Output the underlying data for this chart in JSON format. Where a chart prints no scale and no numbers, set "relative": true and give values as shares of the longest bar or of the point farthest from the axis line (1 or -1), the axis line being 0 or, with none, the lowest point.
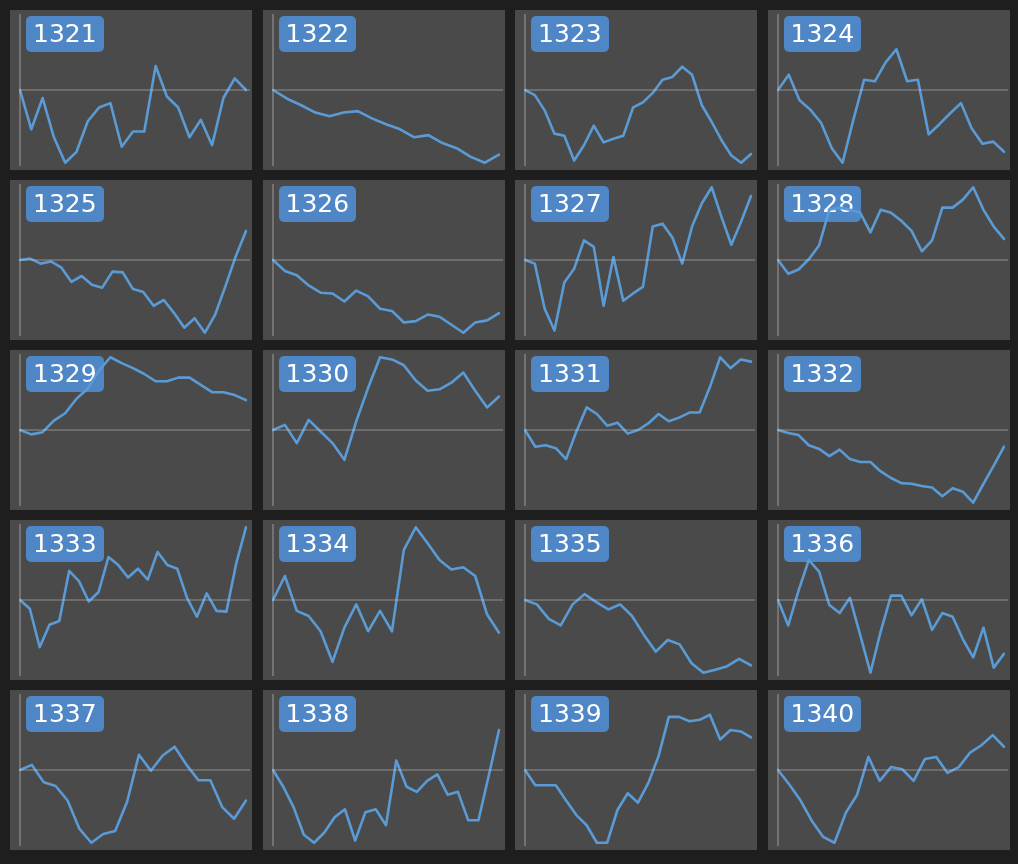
{
  "chart_data": [
    {
      "type": "line",
      "title": "1321",
      "relative": true,
      "color": "#5b9bd5",
      "categories": [
        null,
        null,
        null,
        null,
        null,
        null,
        null,
        null,
        null,
        null,
        null,
        null,
        null,
        null,
        null,
        null,
        null,
        null,
        null,
        null,
        null
      ],
      "values": [
        0,
        -0.54,
        -0.11,
        -0.65,
        -1,
        -0.85,
        -0.43,
        -0.24,
        -0.18,
        -0.78,
        -0.57,
        -0.57,
        0.33,
        -0.09,
        -0.24,
        -0.65,
        -0.41,
        -0.76,
        -0.11,
        0.16,
        0
      ]
    },
    {
      "type": "line",
      "title": "1322",
      "relative": true,
      "color": "#5b9bd5",
      "categories": [
        null,
        null,
        null,
        null,
        null,
        null,
        null,
        null,
        null,
        null,
        null,
        null,
        null,
        null,
        null,
        null,
        null
      ],
      "values": [
        0,
        -0.12,
        -0.21,
        -0.31,
        -0.36,
        -0.31,
        -0.29,
        -0.39,
        -0.47,
        -0.54,
        -0.65,
        -0.62,
        -0.73,
        -0.8,
        -0.92,
        -1,
        -0.89
      ]
    },
    {
      "type": "line",
      "title": "1323",
      "relative": true,
      "color": "#5b9bd5",
      "categories": [
        null,
        null,
        null,
        null,
        null,
        null,
        null,
        null,
        null,
        null,
        null,
        null,
        null,
        null,
        null,
        null,
        null,
        null,
        null,
        null,
        null,
        null,
        null,
        null
      ],
      "values": [
        0,
        -0.07,
        -0.28,
        -0.6,
        -0.63,
        -0.97,
        -0.76,
        -0.49,
        -0.72,
        -0.67,
        -0.63,
        -0.24,
        -0.17,
        -0.04,
        0.14,
        0.18,
        0.32,
        0.21,
        -0.21,
        -0.44,
        -0.69,
        -0.9,
        -1,
        -0.88
      ]
    },
    {
      "type": "line",
      "title": "1324",
      "relative": true,
      "color": "#5b9bd5",
      "categories": [
        null,
        null,
        null,
        null,
        null,
        null,
        null,
        null,
        null,
        null,
        null,
        null,
        null,
        null,
        null,
        null,
        null,
        null,
        null,
        null,
        null,
        null
      ],
      "values": [
        0,
        0.21,
        -0.14,
        -0.27,
        -0.45,
        -0.8,
        -1,
        -0.41,
        0.14,
        0.12,
        0.38,
        0.56,
        0.12,
        0.14,
        -0.61,
        -0.47,
        -0.32,
        -0.18,
        -0.53,
        -0.74,
        -0.71,
        -0.85
      ]
    },
    {
      "type": "line",
      "title": "1325",
      "relative": true,
      "color": "#5b9bd5",
      "categories": [
        null,
        null,
        null,
        null,
        null,
        null,
        null,
        null,
        null,
        null,
        null,
        null,
        null,
        null,
        null,
        null,
        null,
        null,
        null,
        null,
        null,
        null,
        null
      ],
      "values": [
        0,
        0.02,
        -0.05,
        -0.02,
        -0.1,
        -0.3,
        -0.22,
        -0.34,
        -0.38,
        -0.16,
        -0.17,
        -0.4,
        -0.44,
        -0.63,
        -0.55,
        -0.73,
        -0.93,
        -0.8,
        -1,
        -0.75,
        -0.36,
        0.05,
        0.4
      ]
    },
    {
      "type": "line",
      "title": "1326",
      "relative": true,
      "color": "#5b9bd5",
      "categories": [
        null,
        null,
        null,
        null,
        null,
        null,
        null,
        null,
        null,
        null,
        null,
        null,
        null,
        null,
        null,
        null,
        null,
        null,
        null,
        null
      ],
      "values": [
        0,
        -0.15,
        -0.21,
        -0.35,
        -0.45,
        -0.46,
        -0.57,
        -0.42,
        -0.5,
        -0.67,
        -0.7,
        -0.86,
        -0.84,
        -0.75,
        -0.78,
        -0.89,
        -1,
        -0.86,
        -0.83,
        -0.73
      ]
    },
    {
      "type": "line",
      "title": "1327",
      "relative": true,
      "color": "#5b9bd5",
      "categories": [
        null,
        null,
        null,
        null,
        null,
        null,
        null,
        null,
        null,
        null,
        null,
        null,
        null,
        null,
        null,
        null,
        null,
        null,
        null,
        null,
        null,
        null,
        null,
        null
      ],
      "values": [
        0,
        -0.05,
        -0.67,
        -0.97,
        -0.31,
        -0.12,
        0.27,
        0.18,
        -0.63,
        0.04,
        -0.56,
        -0.46,
        -0.37,
        0.46,
        0.5,
        0.31,
        -0.05,
        0.46,
        0.78,
        1,
        0.59,
        0.21,
        0.53,
        0.88
      ]
    },
    {
      "type": "line",
      "title": "1328",
      "relative": true,
      "color": "#5b9bd5",
      "categories": [
        null,
        null,
        null,
        null,
        null,
        null,
        null,
        null,
        null,
        null,
        null,
        null,
        null,
        null,
        null,
        null,
        null,
        null,
        null,
        null,
        null,
        null,
        null
      ],
      "values": [
        0,
        -0.19,
        -0.13,
        0.01,
        0.2,
        0.69,
        0.72,
        0.69,
        0.65,
        0.38,
        0.69,
        0.65,
        0.54,
        0.4,
        0.12,
        0.27,
        0.72,
        0.72,
        0.83,
        1,
        0.69,
        0.46,
        0.29
      ]
    },
    {
      "type": "line",
      "title": "1329",
      "relative": true,
      "color": "#5b9bd5",
      "categories": [
        null,
        null,
        null,
        null,
        null,
        null,
        null,
        null,
        null,
        null,
        null,
        null,
        null,
        null,
        null,
        null,
        null,
        null,
        null,
        null,
        null
      ],
      "values": [
        0,
        -0.06,
        -0.03,
        0.13,
        0.23,
        0.43,
        0.57,
        0.82,
        1,
        0.92,
        0.85,
        0.77,
        0.67,
        0.67,
        0.72,
        0.72,
        0.62,
        0.52,
        0.52,
        0.48,
        0.41
      ]
    },
    {
      "type": "line",
      "title": "1330",
      "relative": true,
      "color": "#5b9bd5",
      "categories": [
        null,
        null,
        null,
        null,
        null,
        null,
        null,
        null,
        null,
        null,
        null,
        null,
        null,
        null,
        null,
        null,
        null,
        null,
        null,
        null
      ],
      "values": [
        0,
        0.07,
        -0.18,
        0.14,
        -0.02,
        -0.18,
        -0.41,
        0.12,
        0.58,
        1,
        0.97,
        0.89,
        0.68,
        0.54,
        0.56,
        0.65,
        0.79,
        0.54,
        0.31,
        0.46
      ]
    },
    {
      "type": "line",
      "title": "1331",
      "relative": true,
      "color": "#5b9bd5",
      "categories": [
        null,
        null,
        null,
        null,
        null,
        null,
        null,
        null,
        null,
        null,
        null,
        null,
        null,
        null,
        null,
        null,
        null,
        null,
        null,
        null,
        null,
        null,
        null
      ],
      "values": [
        0,
        -0.23,
        -0.21,
        -0.25,
        -0.4,
        -0.02,
        0.31,
        0.22,
        0.06,
        0.1,
        -0.05,
        0,
        0.09,
        0.22,
        0.12,
        0.17,
        0.24,
        0.24,
        0.59,
        1,
        0.85,
        0.97,
        0.94
      ]
    },
    {
      "type": "line",
      "title": "1332",
      "relative": true,
      "color": "#5b9bd5",
      "categories": [
        null,
        null,
        null,
        null,
        null,
        null,
        null,
        null,
        null,
        null,
        null,
        null,
        null,
        null,
        null,
        null,
        null,
        null,
        null,
        null,
        null,
        null,
        null
      ],
      "values": [
        0,
        -0.04,
        -0.07,
        -0.21,
        -0.26,
        -0.36,
        -0.27,
        -0.4,
        -0.44,
        -0.44,
        -0.57,
        -0.66,
        -0.73,
        -0.74,
        -0.77,
        -0.79,
        -0.91,
        -0.8,
        -0.85,
        -1,
        -0.74,
        -0.49,
        -0.23
      ]
    },
    {
      "type": "line",
      "title": "1333",
      "relative": true,
      "color": "#5b9bd5",
      "categories": [
        null,
        null,
        null,
        null,
        null,
        null,
        null,
        null,
        null,
        null,
        null,
        null,
        null,
        null,
        null,
        null,
        null,
        null,
        null,
        null,
        null,
        null,
        null,
        null
      ],
      "values": [
        0,
        -0.12,
        -0.65,
        -0.34,
        -0.29,
        0.4,
        0.26,
        -0.02,
        0.11,
        0.59,
        0.48,
        0.31,
        0.43,
        0.28,
        0.66,
        0.48,
        0.43,
        0.03,
        -0.23,
        0.09,
        -0.15,
        -0.16,
        0.5,
        1
      ]
    },
    {
      "type": "line",
      "title": "1334",
      "relative": true,
      "color": "#5b9bd5",
      "categories": [
        null,
        null,
        null,
        null,
        null,
        null,
        null,
        null,
        null,
        null,
        null,
        null,
        null,
        null,
        null,
        null,
        null,
        null,
        null,
        null
      ],
      "values": [
        0,
        0.33,
        -0.15,
        -0.22,
        -0.43,
        -0.85,
        -0.38,
        -0.06,
        -0.43,
        -0.15,
        -0.43,
        0.69,
        1,
        0.78,
        0.55,
        0.42,
        0.45,
        0.33,
        -0.2,
        -0.45
      ]
    },
    {
      "type": "line",
      "title": "1335",
      "relative": true,
      "color": "#5b9bd5",
      "categories": [
        null,
        null,
        null,
        null,
        null,
        null,
        null,
        null,
        null,
        null,
        null,
        null,
        null,
        null,
        null,
        null,
        null,
        null,
        null,
        null
      ],
      "values": [
        0,
        -0.06,
        -0.26,
        -0.35,
        -0.06,
        0.08,
        -0.03,
        -0.13,
        -0.06,
        -0.22,
        -0.48,
        -0.71,
        -0.55,
        -0.61,
        -0.87,
        -1,
        -0.96,
        -0.91,
        -0.81,
        -0.9
      ]
    },
    {
      "type": "line",
      "title": "1336",
      "relative": true,
      "color": "#5b9bd5",
      "categories": [
        null,
        null,
        null,
        null,
        null,
        null,
        null,
        null,
        null,
        null,
        null,
        null,
        null,
        null,
        null,
        null,
        null,
        null,
        null,
        null,
        null,
        null,
        null
      ],
      "values": [
        0,
        -0.35,
        0.13,
        0.55,
        0.39,
        -0.07,
        -0.18,
        0.03,
        -0.48,
        -1,
        -0.43,
        0.06,
        0.06,
        -0.21,
        0.01,
        -0.41,
        -0.18,
        -0.23,
        -0.54,
        -0.79,
        -0.38,
        -0.93,
        -0.74
      ]
    },
    {
      "type": "line",
      "title": "1337",
      "relative": true,
      "color": "#5b9bd5",
      "categories": [
        null,
        null,
        null,
        null,
        null,
        null,
        null,
        null,
        null,
        null,
        null,
        null,
        null,
        null,
        null,
        null,
        null,
        null,
        null,
        null
      ],
      "values": [
        0,
        0.07,
        -0.17,
        -0.22,
        -0.42,
        -0.81,
        -1,
        -0.88,
        -0.84,
        -0.44,
        0.21,
        -0.01,
        0.2,
        0.32,
        0.07,
        -0.14,
        -0.14,
        -0.51,
        -0.67,
        -0.42
      ]
    },
    {
      "type": "line",
      "title": "1338",
      "relative": true,
      "color": "#5b9bd5",
      "categories": [
        null,
        null,
        null,
        null,
        null,
        null,
        null,
        null,
        null,
        null,
        null,
        null,
        null,
        null,
        null,
        null,
        null,
        null,
        null,
        null,
        null,
        null,
        null
      ],
      "values": [
        0,
        -0.23,
        -0.51,
        -0.89,
        -1,
        -0.86,
        -0.65,
        -0.54,
        -0.97,
        -0.58,
        -0.54,
        -0.76,
        0.13,
        -0.23,
        -0.3,
        -0.15,
        -0.06,
        -0.34,
        -0.3,
        -0.69,
        -0.69,
        -0.08,
        0.55
      ]
    },
    {
      "type": "line",
      "title": "1339",
      "relative": true,
      "color": "#5b9bd5",
      "categories": [
        null,
        null,
        null,
        null,
        null,
        null,
        null,
        null,
        null,
        null,
        null,
        null,
        null,
        null,
        null,
        null,
        null,
        null,
        null,
        null,
        null,
        null,
        null
      ],
      "values": [
        0,
        -0.21,
        -0.21,
        -0.21,
        -0.42,
        -0.62,
        -0.76,
        -1,
        -1,
        -0.55,
        -0.32,
        -0.45,
        -0.18,
        0.19,
        0.73,
        0.73,
        0.67,
        0.69,
        0.76,
        0.42,
        0.55,
        0.53,
        0.45
      ]
    },
    {
      "type": "line",
      "title": "1340",
      "relative": true,
      "color": "#5b9bd5",
      "categories": [
        null,
        null,
        null,
        null,
        null,
        null,
        null,
        null,
        null,
        null,
        null,
        null,
        null,
        null,
        null,
        null,
        null,
        null,
        null,
        null,
        null
      ],
      "values": [
        0,
        -0.2,
        -0.42,
        -0.7,
        -0.92,
        -1,
        -0.59,
        -0.34,
        0.18,
        -0.15,
        0.04,
        0.01,
        -0.15,
        0.15,
        0.18,
        -0.04,
        0.04,
        0.24,
        0.34,
        0.48,
        0.32
      ]
    }
  ]
}
